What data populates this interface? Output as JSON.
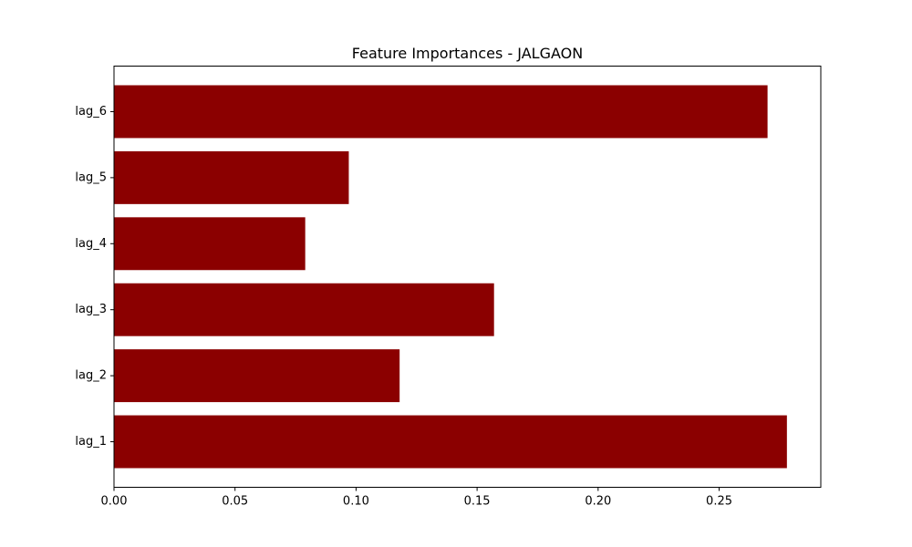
{
  "chart_data": {
    "type": "bar",
    "orientation": "horizontal",
    "title": "Feature Importances - JALGAON",
    "xlabel": "",
    "ylabel": "",
    "categories": [
      "lag_1",
      "lag_2",
      "lag_3",
      "lag_4",
      "lag_5",
      "lag_6"
    ],
    "values": [
      0.278,
      0.118,
      0.157,
      0.079,
      0.097,
      0.27
    ],
    "xlim": [
      0.0,
      0.292
    ],
    "xticks": [
      0.0,
      0.05,
      0.1,
      0.15,
      0.2,
      0.25
    ],
    "xtick_labels": [
      "0.00",
      "0.05",
      "0.10",
      "0.15",
      "0.20",
      "0.25"
    ],
    "bar_color": "#8b0000",
    "grid": false,
    "legend": false
  }
}
